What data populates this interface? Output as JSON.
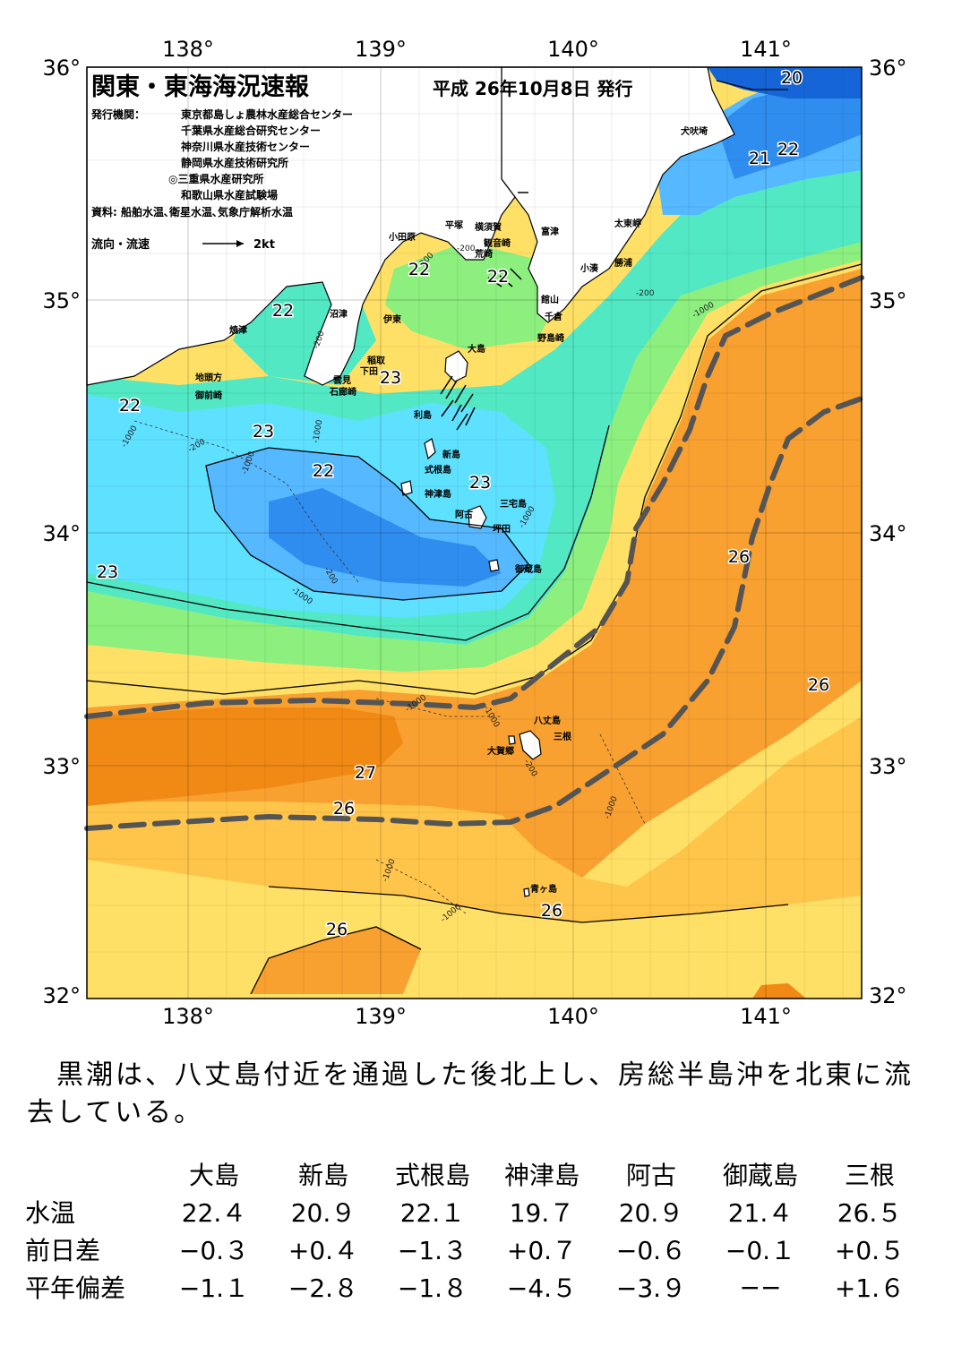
{
  "header": {
    "title": "関東・東海海況速報",
    "issue_date": "平成 26年10月8日 発行",
    "issuer_label": "発行機関：",
    "issuers": [
      "東京都島しょ農林水産総合センター",
      "千葉県水産総合研究センター",
      "神奈川県水産技術センター",
      "静岡県水産技術研究所",
      "◎三重県水産研究所",
      "和歌山県水産試験場"
    ],
    "source": "資料: 船舶水温､衛星水温､気象庁解析水温",
    "legend_label": "流向・流速",
    "legend_speed": "2kt"
  },
  "axes": {
    "lon_ticks": [
      "138°",
      "139°",
      "140°",
      "141°"
    ],
    "lat_ticks": [
      "36°",
      "35°",
      "34°",
      "33°",
      "32°"
    ]
  },
  "colors": {
    "cold_dark": "#1565d8",
    "cold": "#2f8df0",
    "cool": "#56b8ff",
    "mid_cool": "#5ee0ff",
    "mid": "#52e8c4",
    "mild": "#8cef7e",
    "yellow": "#ffe85c",
    "light_orange": "#ffc54a",
    "orange": "#f8a030",
    "warm": "#f08a14",
    "land": "#ffffff",
    "kuroshio_line": "#555555"
  },
  "place_labels": {
    "inubozaki": "犬吠埼",
    "taitozaki": "太東岬",
    "katsuura": "勝浦",
    "kominato": "小湊",
    "tomitsu": "富津",
    "kannonzaki": "観音崎",
    "yokosuka": "横須賀",
    "hiratsuka": "平塚",
    "odawara": "小田原",
    "jogashima": "荒崎",
    "tateyama": "館山",
    "chikura": "千倉",
    "nojimazaki": "野島崎",
    "numazu": "沼津",
    "ito": "伊東",
    "inatori": "稲取",
    "shimoda": "下田",
    "kumomi": "雲見",
    "irozaki": "石廊崎",
    "yaizu": "焼津",
    "jitogata": "地頭方",
    "omaezaki": "御前崎",
    "oshima": "大島",
    "toshima": "利島",
    "niijima": "新島",
    "shikinejima": "式根島",
    "kozushima": "神津島",
    "miyakejima": "三宅島",
    "ako": "阿古",
    "tsubota": "坪田",
    "mikurajima": "御蔵島",
    "hachijojima": "八丈島",
    "mine": "三根",
    "okago": "大賀郷",
    "aogashima": "青ヶ島"
  },
  "contours": {
    "d1000": "-1000",
    "d200": "-200"
  },
  "temp_labels": {
    "t20": "20",
    "t21": "21",
    "t22": "22",
    "t23": "23",
    "t26": "26",
    "t27": "27"
  },
  "summary": "　黒潮は、八丈島付近を通過した後北上し、房総半島沖を北東に流去している。",
  "table": {
    "columns": [
      "大島",
      "新島",
      "式根島",
      "神津島",
      "阿古",
      "御蔵島",
      "三根"
    ],
    "rows": [
      {
        "label": "水温",
        "values": [
          "22.４",
          "20.９",
          "22.１",
          "19.７",
          "20.９",
          "21.４",
          "26.５"
        ]
      },
      {
        "label": "前日差",
        "values": [
          "−0.３",
          "+0.４",
          "−1.３",
          "+0.７",
          "−0.６",
          "−0.１",
          "+0.５"
        ]
      },
      {
        "label": "平年偏差",
        "values": [
          "−1.１",
          "−2.８",
          "−1.８",
          "−4.５",
          "−3.９",
          "−−",
          "+1.６"
        ]
      }
    ]
  }
}
